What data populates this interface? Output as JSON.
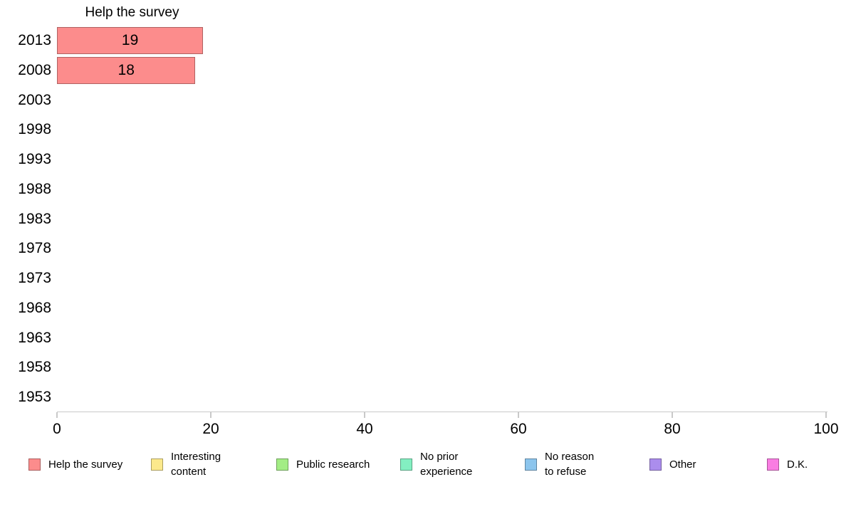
{
  "chart_data": {
    "type": "bar",
    "orientation": "horizontal",
    "title": "Help the survey",
    "categories": [
      "2013",
      "2008",
      "2003",
      "1998",
      "1993",
      "1988",
      "1983",
      "1978",
      "1973",
      "1968",
      "1963",
      "1958",
      "1953"
    ],
    "series": [
      {
        "name": "Help the survey",
        "color": "#fc8c8c",
        "values": [
          19,
          18,
          null,
          null,
          null,
          null,
          null,
          null,
          null,
          null,
          null,
          null,
          null
        ]
      }
    ],
    "xlabel": "",
    "ylabel": "",
    "xlim": [
      0,
      100
    ],
    "x_ticks": [
      "0",
      "20",
      "40",
      "60",
      "80",
      "100"
    ],
    "grid": false,
    "legend_position": "bottom",
    "legend": [
      {
        "label": "Help the survey",
        "lines": [
          "Help the survey"
        ],
        "color": "#fc8c8c"
      },
      {
        "label": "Interesting content",
        "lines": [
          "Interesting",
          "content"
        ],
        "color": "#fce98c"
      },
      {
        "label": "Public research",
        "lines": [
          "Public research"
        ],
        "color": "#a3ed85"
      },
      {
        "label": "No prior experience",
        "lines": [
          "No prior",
          "experience"
        ],
        "color": "#83efc1"
      },
      {
        "label": "No reason to refuse",
        "lines": [
          "No reason",
          "to refuse"
        ],
        "color": "#8cc5ed"
      },
      {
        "label": "Other",
        "lines": [
          "Other"
        ],
        "color": "#ab8ded"
      },
      {
        "label": "D.K.",
        "lines": [
          "D.K."
        ],
        "color": "#f97de2"
      }
    ],
    "colors": {
      "bar_fill": "#fc8c8c",
      "bar_border": "#b06262",
      "axis_line": "#c9c9c9",
      "text": "#000000",
      "background": "#ffffff"
    }
  }
}
